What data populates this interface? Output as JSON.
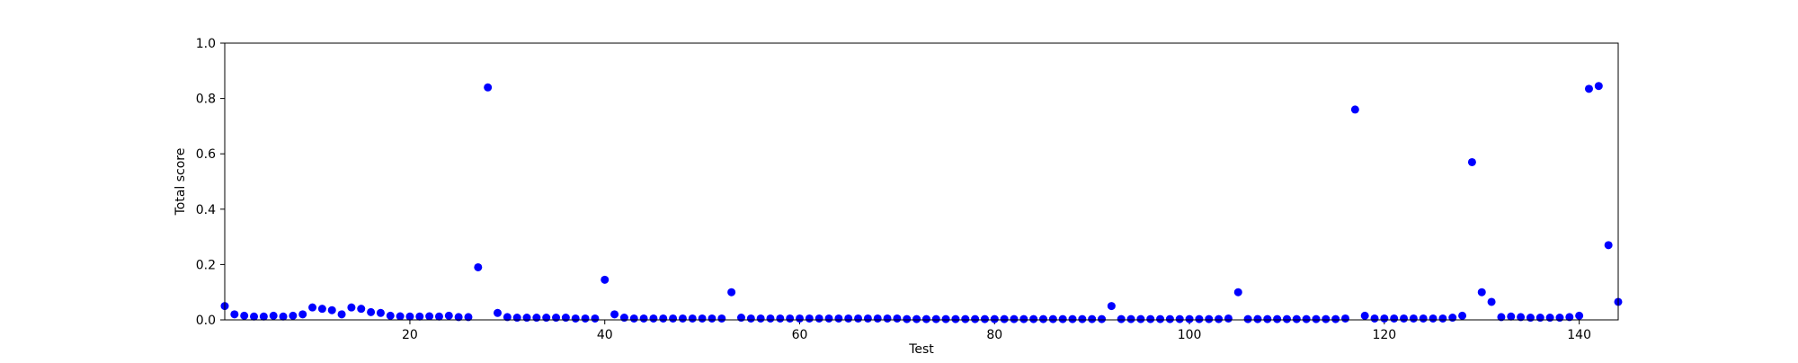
{
  "chart_data": {
    "type": "scatter",
    "xlabel": "Test",
    "ylabel": "Total score",
    "xlim": [
      1,
      144
    ],
    "ylim": [
      0.0,
      1.0
    ],
    "xticks": [
      20,
      40,
      60,
      80,
      100,
      120,
      140
    ],
    "yticks": [
      0.0,
      0.2,
      0.4,
      0.6,
      0.8,
      1.0
    ],
    "xtick_labels": [
      "20",
      "40",
      "60",
      "80",
      "100",
      "120",
      "140"
    ],
    "ytick_labels": [
      "0.0",
      "0.2",
      "0.4",
      "0.6",
      "0.8",
      "1.0"
    ],
    "grid": false,
    "marker_color": "#0000ff",
    "series": [
      {
        "x": [
          1,
          2,
          3,
          4,
          5,
          6,
          7,
          8,
          9,
          10,
          11,
          12,
          13,
          14,
          15,
          16,
          17,
          18,
          19,
          20,
          21,
          22,
          23,
          24,
          25,
          26,
          27,
          28,
          29,
          30,
          31,
          32,
          33,
          34,
          35,
          36,
          37,
          38,
          39,
          40,
          41,
          42,
          43,
          44,
          45,
          46,
          47,
          48,
          49,
          50,
          51,
          52,
          53,
          54,
          55,
          56,
          57,
          58,
          59,
          60,
          61,
          62,
          63,
          64,
          65,
          66,
          67,
          68,
          69,
          70,
          71,
          72,
          73,
          74,
          75,
          76,
          77,
          78,
          79,
          80,
          81,
          82,
          83,
          84,
          85,
          86,
          87,
          88,
          89,
          90,
          91,
          92,
          93,
          94,
          95,
          96,
          97,
          98,
          99,
          100,
          101,
          102,
          103,
          104,
          105,
          106,
          107,
          108,
          109,
          110,
          111,
          112,
          113,
          114,
          115,
          116,
          117,
          118,
          119,
          120,
          121,
          122,
          123,
          124,
          125,
          126,
          127,
          128,
          129,
          130,
          131,
          132,
          133,
          134,
          135,
          136,
          137,
          138,
          139,
          140,
          141,
          142,
          143,
          144
        ],
        "y": [
          0.05,
          0.02,
          0.015,
          0.012,
          0.012,
          0.015,
          0.012,
          0.015,
          0.02,
          0.045,
          0.04,
          0.035,
          0.02,
          0.045,
          0.04,
          0.028,
          0.025,
          0.015,
          0.013,
          0.012,
          0.012,
          0.013,
          0.012,
          0.015,
          0.01,
          0.01,
          0.19,
          0.84,
          0.025,
          0.01,
          0.008,
          0.008,
          0.008,
          0.008,
          0.008,
          0.008,
          0.005,
          0.005,
          0.005,
          0.145,
          0.02,
          0.008,
          0.005,
          0.005,
          0.005,
          0.005,
          0.005,
          0.005,
          0.005,
          0.005,
          0.005,
          0.005,
          0.1,
          0.008,
          0.005,
          0.005,
          0.005,
          0.005,
          0.005,
          0.005,
          0.005,
          0.005,
          0.005,
          0.005,
          0.005,
          0.005,
          0.005,
          0.005,
          0.005,
          0.005,
          0.003,
          0.003,
          0.003,
          0.003,
          0.003,
          0.003,
          0.003,
          0.003,
          0.003,
          0.003,
          0.003,
          0.003,
          0.003,
          0.003,
          0.003,
          0.003,
          0.003,
          0.003,
          0.003,
          0.003,
          0.003,
          0.05,
          0.003,
          0.003,
          0.003,
          0.003,
          0.003,
          0.003,
          0.003,
          0.003,
          0.003,
          0.003,
          0.003,
          0.005,
          0.1,
          0.003,
          0.003,
          0.003,
          0.003,
          0.003,
          0.003,
          0.003,
          0.003,
          0.003,
          0.003,
          0.005,
          0.76,
          0.015,
          0.005,
          0.005,
          0.005,
          0.005,
          0.005,
          0.005,
          0.005,
          0.005,
          0.008,
          0.015,
          0.57,
          0.1,
          0.065,
          0.01,
          0.012,
          0.01,
          0.008,
          0.008,
          0.008,
          0.008,
          0.01,
          0.015,
          0.835,
          0.845,
          0.27,
          0.065
        ]
      }
    ]
  }
}
